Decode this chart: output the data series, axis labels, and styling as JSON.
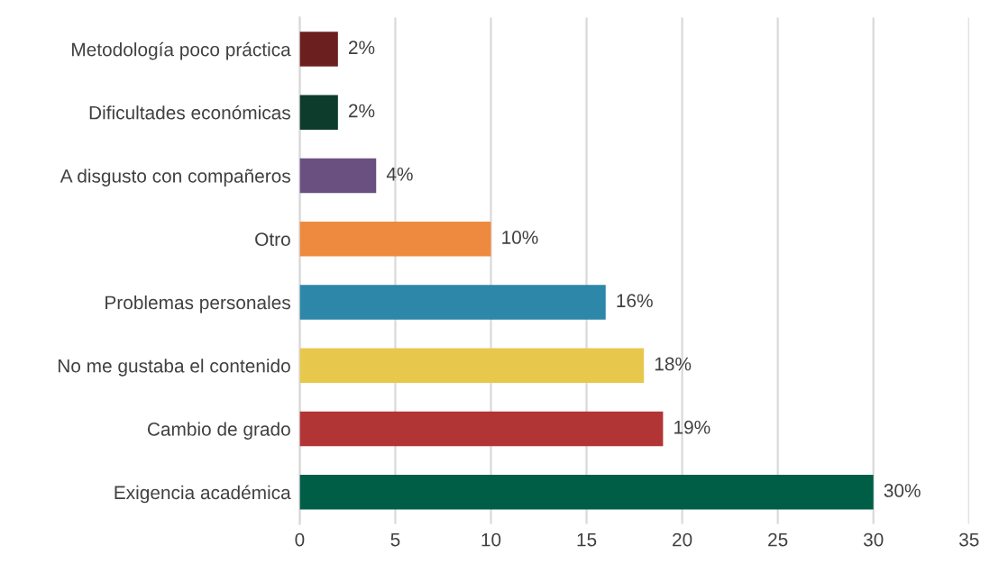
{
  "chart_data": {
    "type": "bar",
    "orientation": "horizontal",
    "categories": [
      "Metodología poco práctica",
      "Dificultades económicas",
      "A disgusto con compañeros",
      "Otro",
      "Problemas personales",
      "No me gustaba el contenido",
      "Cambio de grado",
      "Exigencia académica"
    ],
    "values": [
      2,
      2,
      4,
      10,
      16,
      18,
      19,
      30
    ],
    "colors": [
      "#6b1f1f",
      "#0d3b2c",
      "#6a5080",
      "#ee8a40",
      "#2d87a8",
      "#e8c84c",
      "#b23535",
      "#005e47"
    ],
    "value_labels": [
      "2%",
      "2%",
      "4%",
      "10%",
      "16%",
      "18%",
      "19%",
      "30%"
    ],
    "xlim": [
      0,
      35
    ],
    "xticks": [
      0,
      5,
      10,
      15,
      20,
      25,
      30,
      35
    ],
    "grid": "x"
  }
}
